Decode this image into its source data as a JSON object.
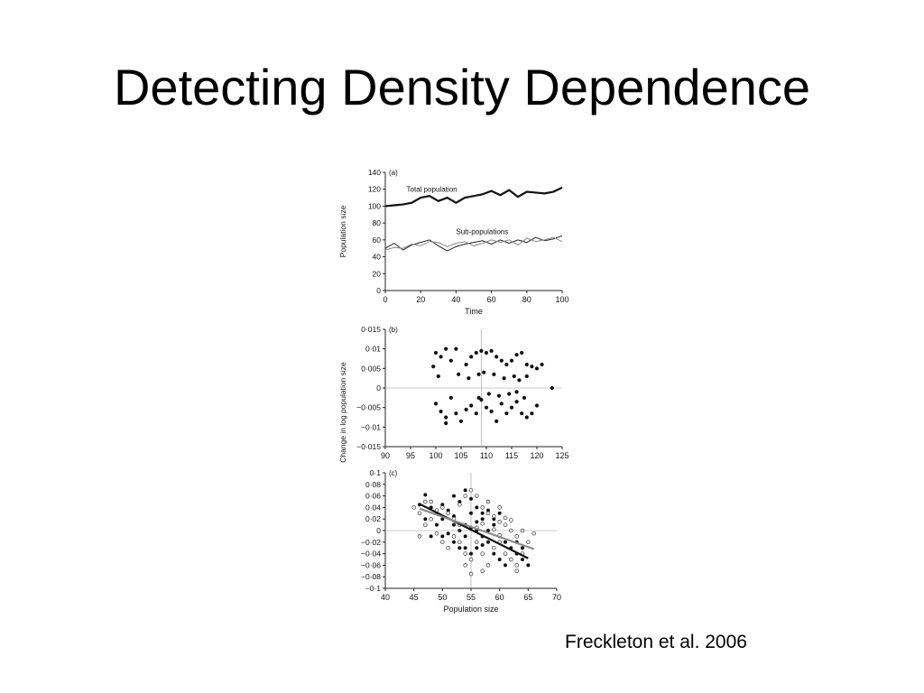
{
  "slide": {
    "title": "Detecting Density Dependence",
    "citation": "Freckleton et al. 2006"
  },
  "chart_data": [
    {
      "type": "line",
      "panel_label": "(a)",
      "xlabel": "Time",
      "ylabel": "Population size",
      "xlim": [
        0,
        100
      ],
      "ylim": [
        0,
        140
      ],
      "xticks": [
        "0",
        "20",
        "40",
        "60",
        "80",
        "100"
      ],
      "yticks": [
        "0",
        "20",
        "40",
        "60",
        "80",
        "100",
        "120",
        "140"
      ],
      "annotations": [
        "Total population",
        "Sub-populations"
      ],
      "series": [
        {
          "x": [
            0,
            5,
            10,
            15,
            20,
            25,
            30,
            35,
            40,
            45,
            50,
            55,
            60,
            65,
            70,
            75,
            80,
            85,
            90,
            95,
            100
          ],
          "values": [
            100,
            101,
            102,
            104,
            110,
            112,
            106,
            110,
            104,
            110,
            112,
            114,
            118,
            113,
            119,
            111,
            117,
            116,
            115,
            117,
            122
          ]
        },
        {
          "x": [
            0,
            5,
            10,
            15,
            20,
            25,
            30,
            35,
            40,
            45,
            50,
            55,
            60,
            65,
            70,
            75,
            80,
            85,
            90,
            95,
            100
          ],
          "values": [
            50,
            56,
            48,
            54,
            57,
            60,
            53,
            47,
            52,
            55,
            57,
            59,
            55,
            60,
            56,
            60,
            57,
            63,
            59,
            61,
            65
          ]
        },
        {
          "x": [
            0,
            5,
            10,
            15,
            20,
            25,
            30,
            35,
            40,
            45,
            50,
            55,
            60,
            65,
            70,
            75,
            80,
            85,
            90,
            95,
            100
          ],
          "values": [
            48,
            51,
            50,
            55,
            53,
            58,
            57,
            52,
            56,
            58,
            53,
            56,
            60,
            57,
            60,
            54,
            62,
            58,
            60,
            63,
            58
          ]
        }
      ]
    },
    {
      "type": "scatter",
      "panel_label": "(b)",
      "xlim": [
        90,
        125
      ],
      "ylim": [
        -0.015,
        0.015
      ],
      "xticks": [
        "90",
        "95",
        "100",
        "105",
        "110",
        "115",
        "120",
        "125"
      ],
      "yticks": [
        "−0·015",
        "−0·01",
        "−0·005",
        "0",
        "0·005",
        "0·01",
        "0·015"
      ],
      "reference_x": 109,
      "reference_y": 0,
      "points": [
        [
          100,
          0.009
        ],
        [
          101,
          0.008
        ],
        [
          102,
          0.01
        ],
        [
          100.5,
          0.003
        ],
        [
          99.5,
          0.0055
        ],
        [
          104,
          0.01
        ],
        [
          106,
          0.006
        ],
        [
          107,
          0.008
        ],
        [
          108,
          0.009
        ],
        [
          109,
          0.0095
        ],
        [
          110,
          0.009
        ],
        [
          111,
          0.0095
        ],
        [
          112,
          0.008
        ],
        [
          113,
          0.007
        ],
        [
          114,
          0.006
        ],
        [
          115,
          0.007
        ],
        [
          116,
          0.0085
        ],
        [
          117,
          0.009
        ],
        [
          118,
          0.006
        ],
        [
          119,
          0.0055
        ],
        [
          120,
          0.005
        ],
        [
          121,
          0.006
        ],
        [
          103,
          0.007
        ],
        [
          104.5,
          0.0035
        ],
        [
          106.5,
          0.0025
        ],
        [
          108.5,
          0.0035
        ],
        [
          109.5,
          0.004
        ],
        [
          111.5,
          0.0035
        ],
        [
          113.5,
          0.0025
        ],
        [
          115.5,
          0.003
        ],
        [
          116.5,
          0.002
        ],
        [
          118,
          0.003
        ],
        [
          100,
          -0.004
        ],
        [
          101,
          -0.006
        ],
        [
          102,
          -0.0075
        ],
        [
          102,
          -0.009
        ],
        [
          103,
          -0.0025
        ],
        [
          105,
          -0.0085
        ],
        [
          106,
          -0.0055
        ],
        [
          107,
          -0.0045
        ],
        [
          108,
          -0.0065
        ],
        [
          108.5,
          -0.0025
        ],
        [
          109,
          -0.003
        ],
        [
          110,
          -0.005
        ],
        [
          111,
          -0.006
        ],
        [
          112,
          -0.0085
        ],
        [
          113,
          -0.004
        ],
        [
          114,
          -0.0065
        ],
        [
          115,
          -0.005
        ],
        [
          116,
          -0.0035
        ],
        [
          117,
          -0.0065
        ],
        [
          118,
          -0.0075
        ],
        [
          119,
          -0.0065
        ],
        [
          120,
          -0.0045
        ],
        [
          104,
          -0.0065
        ],
        [
          110.5,
          -0.0015
        ],
        [
          112.5,
          -0.002
        ],
        [
          114.5,
          -0.0015
        ],
        [
          116,
          -0.001
        ],
        [
          117.5,
          -0.0025
        ],
        [
          123,
          0.0
        ]
      ]
    },
    {
      "type": "scatter",
      "panel_label": "(c)",
      "xlabel": "Population size",
      "ylabel": "Change in log population size",
      "xlim": [
        40,
        70
      ],
      "ylim": [
        -0.1,
        0.1
      ],
      "xticks": [
        "40",
        "45",
        "50",
        "55",
        "60",
        "65",
        "70"
      ],
      "yticks": [
        "−0·1",
        "−0·08",
        "−0·06",
        "−0·04",
        "−0·02",
        "0",
        "0·02",
        "0·04",
        "0·06",
        "0·08",
        "0·1"
      ],
      "reference_x": 55,
      "reference_y": 0,
      "series": [
        {
          "name": "filled",
          "points": [
            [
              46,
              0.045
            ],
            [
              47,
              0.062
            ],
            [
              48,
              0.04
            ],
            [
              49,
              0.03
            ],
            [
              50,
              0.02
            ],
            [
              51,
              0.035
            ],
            [
              52,
              0.01
            ],
            [
              53,
              0.05
            ],
            [
              54,
              0.07
            ],
            [
              55,
              0.03
            ],
            [
              56,
              0.04
            ],
            [
              57,
              0.02
            ],
            [
              58,
              0.05
            ],
            [
              59,
              0.01
            ],
            [
              60,
              -0.01
            ],
            [
              61,
              -0.02
            ],
            [
              62,
              -0.03
            ],
            [
              63,
              -0.04
            ],
            [
              64,
              -0.05
            ],
            [
              65,
              -0.06
            ],
            [
              50,
              -0.01
            ],
            [
              52,
              -0.02
            ],
            [
              54,
              -0.03
            ],
            [
              55,
              -0.04
            ],
            [
              56,
              -0.03
            ],
            [
              57,
              -0.01
            ],
            [
              58,
              -0.02
            ],
            [
              59,
              -0.04
            ],
            [
              60,
              -0.05
            ],
            [
              61,
              -0.06
            ],
            [
              62,
              -0.05
            ],
            [
              53,
              0.0
            ],
            [
              54,
              0.01
            ],
            [
              55,
              0.005
            ],
            [
              56,
              0.0
            ],
            [
              57,
              0.03
            ],
            [
              58,
              0.0
            ],
            [
              52,
              0.025
            ],
            [
              51,
              -0.005
            ],
            [
              50,
              0.045
            ],
            [
              49,
              0.01
            ],
            [
              48,
              -0.01
            ],
            [
              47,
              0.02
            ],
            [
              53,
              -0.03
            ],
            [
              55,
              0.055
            ],
            [
              56,
              0.015
            ],
            [
              57,
              -0.025
            ],
            [
              59,
              0.02
            ],
            [
              60,
              0.03
            ],
            [
              63,
              -0.02
            ],
            [
              64,
              -0.03
            ],
            [
              52,
              0.06
            ],
            [
              54,
              -0.01
            ],
            [
              58,
              0.035
            ]
          ]
        },
        {
          "name": "open",
          "points": [
            [
              45,
              0.04
            ],
            [
              46,
              0.03
            ],
            [
              47,
              0.05
            ],
            [
              48,
              0.05
            ],
            [
              49,
              0.035
            ],
            [
              50,
              0.04
            ],
            [
              51,
              0.03
            ],
            [
              52,
              0.02
            ],
            [
              53,
              0.045
            ],
            [
              54,
              0.06
            ],
            [
              55,
              0.07
            ],
            [
              56,
              0.06
            ],
            [
              57,
              0.04
            ],
            [
              58,
              0.03
            ],
            [
              59,
              0.025
            ],
            [
              60,
              0.015
            ],
            [
              61,
              0.01
            ],
            [
              62,
              0.0
            ],
            [
              63,
              -0.01
            ],
            [
              64,
              0.0
            ],
            [
              65,
              -0.02
            ],
            [
              66,
              -0.005
            ],
            [
              50,
              -0.02
            ],
            [
              51,
              -0.03
            ],
            [
              52,
              -0.01
            ],
            [
              53,
              -0.02
            ],
            [
              54,
              -0.04
            ],
            [
              55,
              -0.05
            ],
            [
              56,
              -0.02
            ],
            [
              57,
              -0.04
            ],
            [
              58,
              -0.06
            ],
            [
              59,
              -0.03
            ],
            [
              60,
              -0.02
            ],
            [
              61,
              -0.04
            ],
            [
              62,
              -0.05
            ],
            [
              63,
              -0.07
            ],
            [
              64,
              -0.04
            ],
            [
              55,
              -0.075
            ],
            [
              53,
              0.01
            ],
            [
              56,
              0.005
            ],
            [
              57,
              0.012
            ],
            [
              59,
              0.002
            ],
            [
              60,
              -0.008
            ],
            [
              61,
              0.022
            ],
            [
              62,
              0.018
            ],
            [
              49,
              -0.005
            ],
            [
              48,
              0.02
            ],
            [
              47,
              0.01
            ],
            [
              46,
              -0.01
            ],
            [
              58,
              0.05
            ],
            [
              60,
              0.04
            ],
            [
              54,
              -0.06
            ],
            [
              57,
              -0.07
            ],
            [
              63,
              -0.06
            ]
          ]
        }
      ],
      "regression_lines": [
        {
          "name": "dark",
          "x": [
            46,
            65
          ],
          "y": [
            0.046,
            -0.048
          ]
        },
        {
          "name": "grey",
          "x": [
            46,
            66
          ],
          "y": [
            0.038,
            -0.032
          ]
        }
      ]
    }
  ]
}
